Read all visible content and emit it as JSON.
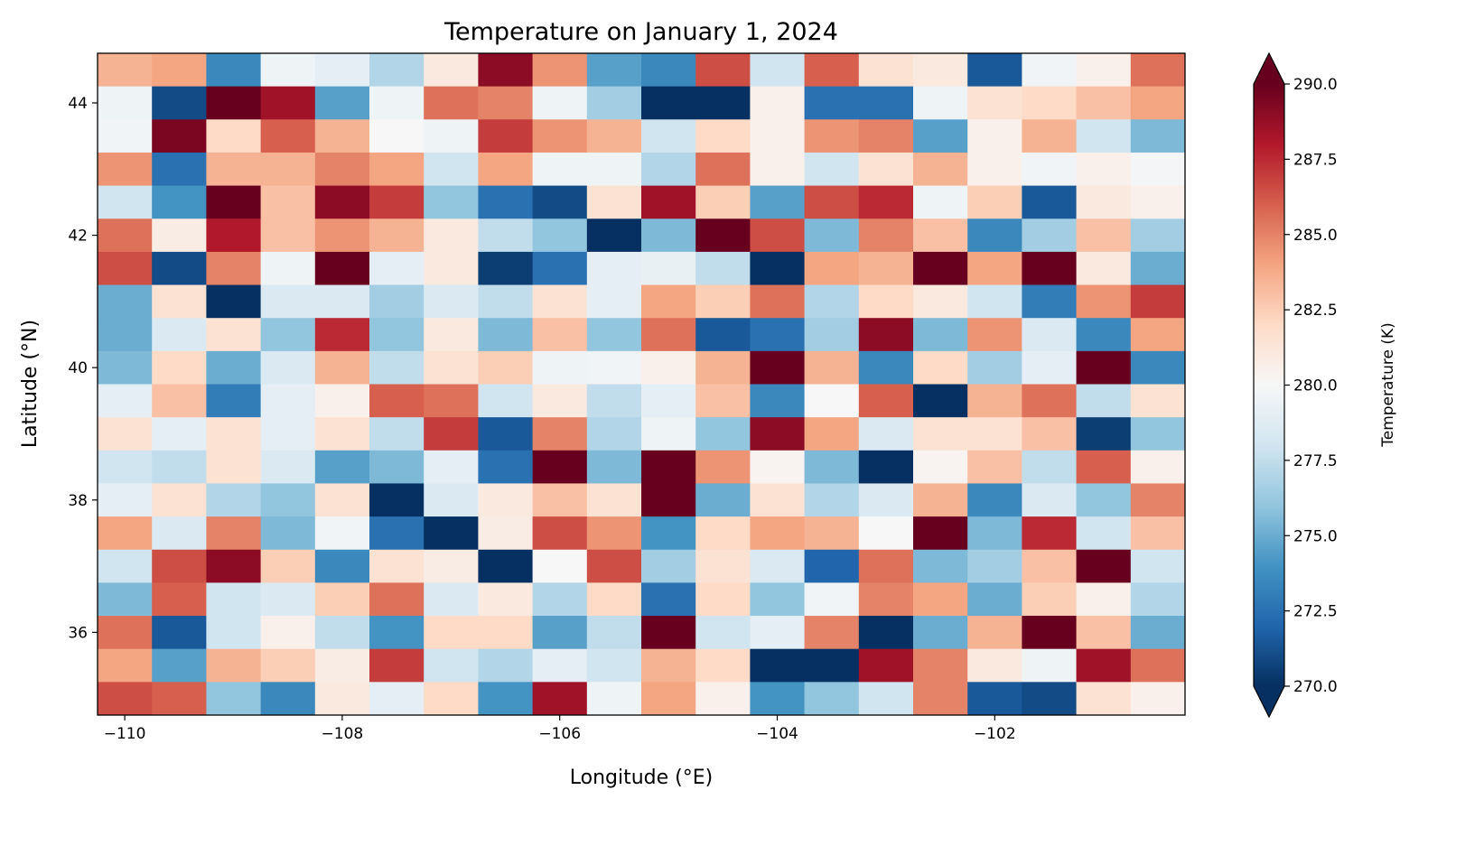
{
  "chart_data": {
    "type": "heatmap",
    "title": "Temperature on January 1, 2024",
    "xlabel": "Longitude (°E)",
    "ylabel": "Latitude (°N)",
    "colorbar_label": "Temperature (K)",
    "colormap": "RdBu_r",
    "colormap_stops": [
      "#053061",
      "#2166ac",
      "#4393c3",
      "#92c5de",
      "#d1e5f0",
      "#f7f7f7",
      "#fddbc7",
      "#f4a582",
      "#d6604d",
      "#b2182b",
      "#67001f"
    ],
    "vmin": 270,
    "vmax": 290,
    "colorbar_extend": "both",
    "xlim": [
      -110.25,
      -100.25
    ],
    "ylim": [
      34.75,
      44.75
    ],
    "cell_size_deg": 0.5,
    "xticks": [
      -110,
      -108,
      -106,
      -104,
      -102
    ],
    "xtick_labels": [
      "−110",
      "−108",
      "−106",
      "−104",
      "−102"
    ],
    "yticks": [
      36,
      38,
      40,
      42,
      44
    ],
    "ytick_labels": [
      "36",
      "38",
      "40",
      "42",
      "44"
    ],
    "cbar_ticks": [
      270,
      272.5,
      275,
      277.5,
      280,
      282.5,
      285,
      287.5,
      290
    ],
    "cbar_tick_labels": [
      "270.0",
      "272.5",
      "275.0",
      "277.5",
      "280.0",
      "282.5",
      "285.0",
      "287.5",
      "290.0"
    ],
    "lon_centers": [
      -110,
      -109.5,
      -109,
      -108.5,
      -108,
      -107.5,
      -107,
      -106.5,
      -106,
      -105.5,
      -105,
      -104.5,
      -104,
      -103.5,
      -103,
      -102.5,
      -102,
      -101.5,
      -101,
      -100.5
    ],
    "lat_centers_top_to_bottom": [
      44.5,
      44,
      43.5,
      43,
      42.5,
      42,
      41.5,
      41,
      40.5,
      40,
      39.5,
      39,
      38.5,
      38,
      37.5,
      37,
      36.5,
      36,
      35.5,
      35
    ],
    "values_top_to_bottom": [
      [
        283.5,
        284,
        273.5,
        279.5,
        279,
        277,
        281,
        289,
        284.5,
        274.5,
        273.5,
        286.5,
        278,
        286,
        281.5,
        281,
        271.5,
        279.7,
        280.5,
        285.5
      ],
      [
        279.5,
        271,
        290,
        288.5,
        274.5,
        279.5,
        285.5,
        285,
        279.5,
        276.5,
        270,
        270,
        280.5,
        272.5,
        272.5,
        279.5,
        281.5,
        282,
        283,
        284
      ],
      [
        279.7,
        289.5,
        282,
        286,
        283.5,
        280,
        279.5,
        287,
        284.5,
        283.5,
        278,
        282,
        280.5,
        284.5,
        285,
        274.5,
        280.5,
        283.5,
        278,
        275.5
      ],
      [
        284.5,
        272.5,
        283.5,
        283.5,
        285,
        284,
        278,
        284,
        279.5,
        279.5,
        277,
        285.5,
        280.5,
        278,
        281.5,
        283.5,
        280.5,
        279.7,
        280.5,
        279.8
      ],
      [
        278,
        274,
        290,
        283,
        289,
        287,
        276,
        272.5,
        271,
        281.5,
        288.5,
        282.5,
        274.5,
        286.5,
        287.5,
        279.5,
        282.5,
        271.5,
        281,
        280.5
      ],
      [
        285.5,
        280.8,
        288,
        283,
        284.5,
        283.5,
        281,
        277.5,
        276,
        270,
        275.5,
        290,
        286.5,
        275.5,
        285,
        283,
        273.5,
        276.5,
        283,
        276.5
      ],
      [
        286.5,
        271,
        285,
        279.5,
        290,
        279,
        281,
        270.5,
        272.5,
        279,
        279.2,
        277.5,
        270,
        284,
        283.5,
        290,
        284,
        290,
        281,
        275
      ],
      [
        275,
        281.5,
        270,
        278.5,
        278.5,
        276.5,
        278.5,
        277.5,
        281.5,
        279,
        284,
        282.5,
        285.5,
        277,
        282,
        281,
        278,
        273,
        284.5,
        287
      ],
      [
        275,
        278.5,
        281.5,
        276,
        287.5,
        276,
        281,
        275.5,
        283,
        276,
        285.5,
        271.5,
        272.5,
        276.5,
        289,
        275.5,
        284.5,
        278.5,
        273.5,
        284
      ],
      [
        275.5,
        282,
        275,
        278.5,
        283.5,
        277.5,
        281.5,
        282.5,
        279.5,
        279.7,
        280.5,
        283.5,
        290,
        283.5,
        273.5,
        282,
        276.5,
        279,
        290,
        273.5
      ],
      [
        279,
        283,
        273,
        279,
        280.5,
        286,
        285.5,
        278,
        281,
        277.5,
        279,
        283,
        273.5,
        280,
        286,
        270,
        283.5,
        285.5,
        277.5,
        281.5
      ],
      [
        281.5,
        279,
        281.5,
        279,
        281.5,
        277.5,
        287,
        271.5,
        285,
        277,
        279.5,
        276,
        289,
        284,
        278.5,
        281.5,
        281.5,
        283,
        270.5,
        276
      ],
      [
        278,
        277.5,
        281.5,
        278.5,
        274.5,
        275.5,
        279,
        272.5,
        290,
        275.5,
        290,
        284.5,
        280.3,
        275.5,
        270,
        280.3,
        283,
        277.5,
        286,
        280.5
      ],
      [
        279,
        281.5,
        277,
        276,
        281.5,
        270,
        278.5,
        281,
        283,
        281.5,
        290,
        275,
        281.5,
        277,
        278.5,
        283.5,
        273.5,
        278.5,
        276,
        285
      ],
      [
        284,
        278.5,
        285,
        275.5,
        279.7,
        272.5,
        270,
        280.8,
        286.5,
        284.5,
        274,
        282,
        284,
        283.5,
        280,
        290,
        275.5,
        287.5,
        278,
        283
      ],
      [
        278,
        286.5,
        289,
        282.5,
        273.5,
        281.5,
        280.8,
        270,
        280,
        286.5,
        276.5,
        281.5,
        278.5,
        272,
        285.5,
        275.5,
        276.5,
        283,
        290,
        278
      ],
      [
        275.5,
        286,
        278,
        278.5,
        282.5,
        285.5,
        278.5,
        281,
        277,
        282,
        272.5,
        282,
        276,
        279.7,
        285,
        284,
        275,
        282.5,
        280.5,
        277
      ],
      [
        285.5,
        271.5,
        278,
        280.5,
        277.5,
        274,
        282,
        282,
        274.5,
        277.5,
        290,
        278,
        279,
        285,
        270,
        275,
        283.5,
        290,
        283,
        275
      ],
      [
        284,
        274.5,
        283.5,
        282.5,
        280.8,
        287,
        278,
        277,
        279,
        278,
        283.5,
        282,
        270,
        270,
        288.5,
        285,
        281,
        279.5,
        288.5,
        285.5
      ],
      [
        286.5,
        286,
        276,
        273.5,
        281,
        279,
        282,
        274,
        288.5,
        279.5,
        284,
        280.5,
        274,
        276,
        278,
        285,
        271.5,
        271,
        281.5,
        280.5
      ]
    ]
  }
}
